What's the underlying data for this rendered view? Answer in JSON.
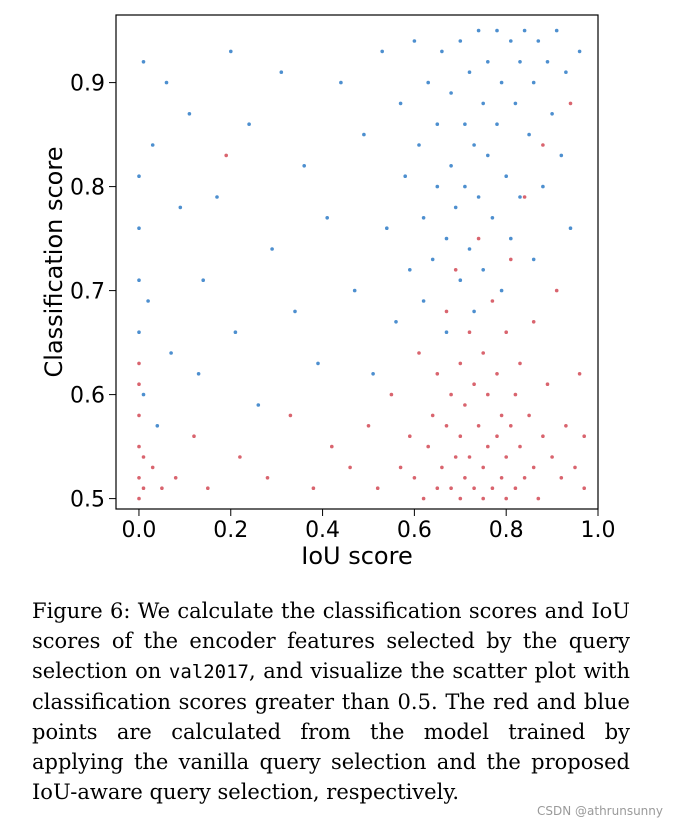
{
  "chart_data": {
    "type": "scatter",
    "title": "",
    "xlabel": "IoU score",
    "ylabel": "Classification score",
    "xlim": [
      -0.05,
      1.0
    ],
    "ylim": [
      0.49,
      0.965
    ],
    "xticks": [
      0.0,
      0.2,
      0.4,
      0.6,
      0.8,
      1.0
    ],
    "xtick_labels": [
      "0.0",
      "0.2",
      "0.4",
      "0.6",
      "0.8",
      "1.0"
    ],
    "yticks": [
      0.5,
      0.6,
      0.7,
      0.8,
      0.9
    ],
    "ytick_labels": [
      "0.5",
      "0.6",
      "0.7",
      "0.8",
      "0.9"
    ],
    "grid": false,
    "series": [
      {
        "name": "vanilla query selection",
        "color": "#d9646e",
        "points": [
          [
            0.0,
            0.5
          ],
          [
            0.0,
            0.52
          ],
          [
            0.0,
            0.55
          ],
          [
            0.0,
            0.58
          ],
          [
            0.0,
            0.61
          ],
          [
            0.0,
            0.63
          ],
          [
            0.01,
            0.51
          ],
          [
            0.01,
            0.54
          ],
          [
            0.03,
            0.53
          ],
          [
            0.05,
            0.51
          ],
          [
            0.08,
            0.52
          ],
          [
            0.12,
            0.56
          ],
          [
            0.15,
            0.51
          ],
          [
            0.19,
            0.83
          ],
          [
            0.22,
            0.54
          ],
          [
            0.28,
            0.52
          ],
          [
            0.33,
            0.58
          ],
          [
            0.38,
            0.51
          ],
          [
            0.42,
            0.55
          ],
          [
            0.46,
            0.53
          ],
          [
            0.5,
            0.57
          ],
          [
            0.52,
            0.51
          ],
          [
            0.55,
            0.6
          ],
          [
            0.57,
            0.53
          ],
          [
            0.59,
            0.56
          ],
          [
            0.6,
            0.52
          ],
          [
            0.61,
            0.64
          ],
          [
            0.62,
            0.5
          ],
          [
            0.63,
            0.55
          ],
          [
            0.64,
            0.58
          ],
          [
            0.65,
            0.51
          ],
          [
            0.65,
            0.62
          ],
          [
            0.66,
            0.53
          ],
          [
            0.67,
            0.57
          ],
          [
            0.67,
            0.68
          ],
          [
            0.68,
            0.51
          ],
          [
            0.68,
            0.6
          ],
          [
            0.69,
            0.54
          ],
          [
            0.69,
            0.72
          ],
          [
            0.7,
            0.5
          ],
          [
            0.7,
            0.56
          ],
          [
            0.7,
            0.63
          ],
          [
            0.71,
            0.52
          ],
          [
            0.71,
            0.59
          ],
          [
            0.72,
            0.66
          ],
          [
            0.72,
            0.54
          ],
          [
            0.73,
            0.51
          ],
          [
            0.73,
            0.61
          ],
          [
            0.74,
            0.57
          ],
          [
            0.74,
            0.75
          ],
          [
            0.75,
            0.5
          ],
          [
            0.75,
            0.53
          ],
          [
            0.75,
            0.64
          ],
          [
            0.76,
            0.55
          ],
          [
            0.76,
            0.6
          ],
          [
            0.77,
            0.51
          ],
          [
            0.77,
            0.69
          ],
          [
            0.78,
            0.56
          ],
          [
            0.78,
            0.62
          ],
          [
            0.79,
            0.52
          ],
          [
            0.79,
            0.58
          ],
          [
            0.8,
            0.5
          ],
          [
            0.8,
            0.54
          ],
          [
            0.8,
            0.66
          ],
          [
            0.81,
            0.57
          ],
          [
            0.81,
            0.73
          ],
          [
            0.82,
            0.51
          ],
          [
            0.82,
            0.6
          ],
          [
            0.83,
            0.55
          ],
          [
            0.83,
            0.63
          ],
          [
            0.84,
            0.52
          ],
          [
            0.84,
            0.79
          ],
          [
            0.85,
            0.58
          ],
          [
            0.86,
            0.53
          ],
          [
            0.86,
            0.67
          ],
          [
            0.87,
            0.5
          ],
          [
            0.88,
            0.56
          ],
          [
            0.88,
            0.84
          ],
          [
            0.89,
            0.61
          ],
          [
            0.9,
            0.54
          ],
          [
            0.91,
            0.7
          ],
          [
            0.92,
            0.52
          ],
          [
            0.93,
            0.57
          ],
          [
            0.94,
            0.88
          ],
          [
            0.95,
            0.53
          ],
          [
            0.96,
            0.62
          ],
          [
            0.97,
            0.51
          ],
          [
            0.97,
            0.56
          ]
        ]
      },
      {
        "name": "IoU-aware query selection",
        "color": "#4d8fcf",
        "points": [
          [
            0.0,
            0.66
          ],
          [
            0.0,
            0.71
          ],
          [
            0.0,
            0.76
          ],
          [
            0.0,
            0.81
          ],
          [
            0.01,
            0.92
          ],
          [
            0.01,
            0.6
          ],
          [
            0.02,
            0.69
          ],
          [
            0.03,
            0.84
          ],
          [
            0.04,
            0.57
          ],
          [
            0.06,
            0.9
          ],
          [
            0.07,
            0.64
          ],
          [
            0.09,
            0.78
          ],
          [
            0.11,
            0.87
          ],
          [
            0.13,
            0.62
          ],
          [
            0.14,
            0.71
          ],
          [
            0.17,
            0.79
          ],
          [
            0.2,
            0.93
          ],
          [
            0.21,
            0.66
          ],
          [
            0.24,
            0.86
          ],
          [
            0.26,
            0.59
          ],
          [
            0.29,
            0.74
          ],
          [
            0.31,
            0.91
          ],
          [
            0.34,
            0.68
          ],
          [
            0.36,
            0.82
          ],
          [
            0.39,
            0.63
          ],
          [
            0.41,
            0.77
          ],
          [
            0.44,
            0.9
          ],
          [
            0.47,
            0.7
          ],
          [
            0.49,
            0.85
          ],
          [
            0.51,
            0.62
          ],
          [
            0.53,
            0.93
          ],
          [
            0.54,
            0.76
          ],
          [
            0.56,
            0.67
          ],
          [
            0.57,
            0.88
          ],
          [
            0.58,
            0.81
          ],
          [
            0.59,
            0.72
          ],
          [
            0.6,
            0.94
          ],
          [
            0.61,
            0.84
          ],
          [
            0.62,
            0.77
          ],
          [
            0.62,
            0.69
          ],
          [
            0.63,
            0.9
          ],
          [
            0.64,
            0.73
          ],
          [
            0.65,
            0.86
          ],
          [
            0.65,
            0.8
          ],
          [
            0.66,
            0.93
          ],
          [
            0.67,
            0.75
          ],
          [
            0.67,
            0.66
          ],
          [
            0.68,
            0.89
          ],
          [
            0.68,
            0.82
          ],
          [
            0.69,
            0.78
          ],
          [
            0.7,
            0.94
          ],
          [
            0.7,
            0.71
          ],
          [
            0.71,
            0.86
          ],
          [
            0.71,
            0.8
          ],
          [
            0.72,
            0.91
          ],
          [
            0.72,
            0.74
          ],
          [
            0.73,
            0.68
          ],
          [
            0.73,
            0.84
          ],
          [
            0.74,
            0.95
          ],
          [
            0.74,
            0.79
          ],
          [
            0.75,
            0.88
          ],
          [
            0.75,
            0.72
          ],
          [
            0.76,
            0.92
          ],
          [
            0.76,
            0.83
          ],
          [
            0.77,
            0.77
          ],
          [
            0.78,
            0.95
          ],
          [
            0.78,
            0.86
          ],
          [
            0.79,
            0.7
          ],
          [
            0.79,
            0.9
          ],
          [
            0.8,
            0.81
          ],
          [
            0.81,
            0.94
          ],
          [
            0.81,
            0.75
          ],
          [
            0.82,
            0.88
          ],
          [
            0.83,
            0.92
          ],
          [
            0.83,
            0.79
          ],
          [
            0.84,
            0.95
          ],
          [
            0.85,
            0.85
          ],
          [
            0.86,
            0.9
          ],
          [
            0.86,
            0.73
          ],
          [
            0.87,
            0.94
          ],
          [
            0.88,
            0.8
          ],
          [
            0.89,
            0.92
          ],
          [
            0.9,
            0.87
          ],
          [
            0.91,
            0.95
          ],
          [
            0.92,
            0.83
          ],
          [
            0.93,
            0.91
          ],
          [
            0.94,
            0.76
          ],
          [
            0.96,
            0.93
          ]
        ]
      }
    ]
  },
  "caption": {
    "part1": "Figure 6:  We calculate the classification scores and IoU scores of the encoder features selected by the query selection on ",
    "code": "val2017",
    "part2": ", and visualize the scatter plot with classification scores greater than ",
    "number": "0.5",
    "part3": ". The red and blue points are calculated from the model trained by applying the vanilla query selection and the proposed IoU-aware query selection, respectively."
  },
  "watermark": "CSDN @athrunsunny"
}
